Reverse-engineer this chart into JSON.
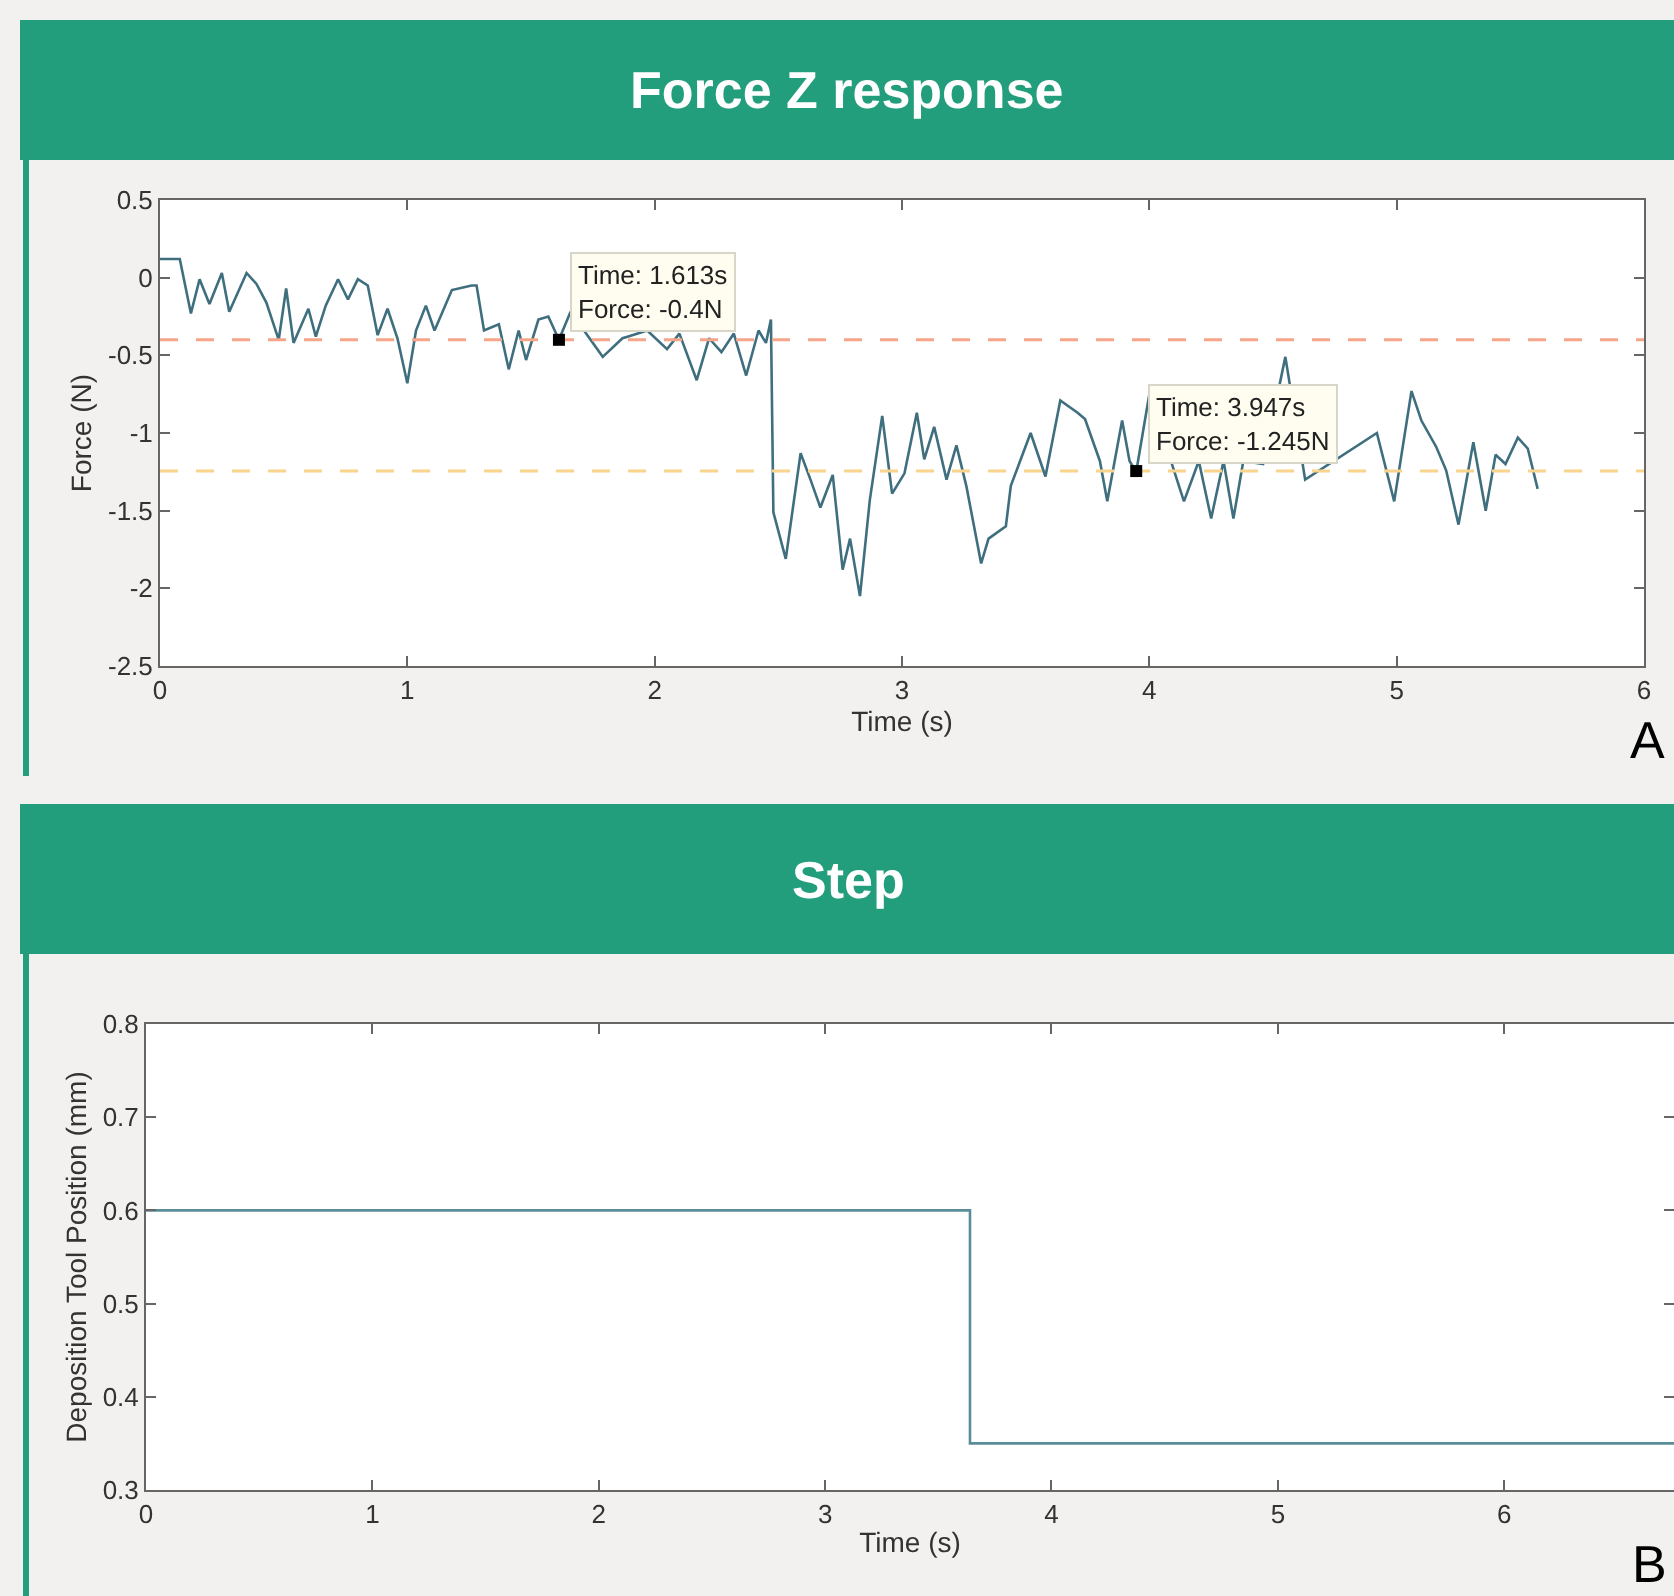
{
  "chart_data": [
    {
      "type": "line",
      "title": "Force Z response",
      "xlabel": "Time (s)",
      "ylabel": "Force (N)",
      "xlim": [
        0,
        6
      ],
      "ylim": [
        -2.5,
        0.5
      ],
      "xticks": [
        0,
        1,
        2,
        3,
        4,
        5,
        6
      ],
      "yticks": [
        -2.5,
        -2,
        -1.5,
        -1,
        -0.5,
        0,
        0.5
      ],
      "series": [
        {
          "color": "#3f6f7f",
          "x": [
            0,
            0.08,
            0.125,
            0.16,
            0.2,
            0.25,
            0.28,
            0.35,
            0.39,
            0.43,
            0.48,
            0.51,
            0.54,
            0.6,
            0.63,
            0.67,
            0.72,
            0.76,
            0.8,
            0.84,
            0.88,
            0.92,
            0.96,
            1.0,
            1.035,
            1.075,
            1.11,
            1.18,
            1.26,
            1.28,
            1.31,
            1.37,
            1.41,
            1.45,
            1.48,
            1.53,
            1.57,
            1.613,
            1.66,
            1.79,
            1.87,
            1.89,
            1.97,
            2.05,
            2.1,
            2.17,
            2.22,
            2.27,
            2.32,
            2.37,
            2.42,
            2.45,
            2.47,
            2.48,
            2.53,
            2.59,
            2.63,
            2.67,
            2.72,
            2.76,
            2.79,
            2.83,
            2.87,
            2.92,
            2.96,
            3.01,
            3.06,
            3.09,
            3.13,
            3.18,
            3.22,
            3.26,
            3.32,
            3.35,
            3.42,
            3.44,
            3.52,
            3.58,
            3.64,
            3.71,
            3.74,
            3.8,
            3.83,
            3.89,
            3.92,
            3.947,
            4.0,
            4.14,
            4.2,
            4.25,
            4.3,
            4.34,
            4.38,
            4.46,
            4.55,
            4.63,
            4.92,
            4.99,
            5.06,
            5.1,
            5.16,
            5.2,
            5.25,
            5.31,
            5.36,
            5.4,
            5.44,
            5.49,
            5.53,
            5.57
          ],
          "values": [
            0.12,
            0.12,
            -0.23,
            -0.01,
            -0.17,
            0.03,
            -0.22,
            0.03,
            -0.04,
            -0.16,
            -0.4,
            -0.07,
            -0.42,
            -0.2,
            -0.38,
            -0.18,
            -0.01,
            -0.14,
            -0.01,
            -0.05,
            -0.37,
            -0.2,
            -0.39,
            -0.68,
            -0.34,
            -0.18,
            -0.34,
            -0.08,
            -0.05,
            -0.05,
            -0.34,
            -0.3,
            -0.59,
            -0.34,
            -0.53,
            -0.27,
            -0.25,
            -0.4,
            -0.22,
            -0.51,
            -0.39,
            -0.38,
            -0.34,
            -0.46,
            -0.36,
            -0.66,
            -0.39,
            -0.48,
            -0.36,
            -0.63,
            -0.34,
            -0.42,
            -0.27,
            -1.51,
            -1.81,
            -1.13,
            -1.3,
            -1.48,
            -1.27,
            -1.88,
            -1.68,
            -2.05,
            -1.43,
            -0.89,
            -1.39,
            -1.26,
            -0.87,
            -1.17,
            -0.96,
            -1.3,
            -1.08,
            -1.34,
            -1.84,
            -1.68,
            -1.6,
            -1.34,
            -1.0,
            -1.28,
            -0.79,
            -0.87,
            -0.91,
            -1.18,
            -1.44,
            -0.92,
            -1.18,
            -1.25,
            -0.75,
            -1.44,
            -1.18,
            -1.55,
            -1.18,
            -1.55,
            -1.18,
            -1.2,
            -0.51,
            -1.3,
            -1.0,
            -1.44,
            -0.73,
            -0.92,
            -1.09,
            -1.24,
            -1.59,
            -1.06,
            -1.5,
            -1.14,
            -1.2,
            -1.03,
            -1.1,
            -1.36
          ]
        }
      ],
      "ref_lines": [
        {
          "axis": "y",
          "value": -0.4,
          "color": "#f4a58a",
          "line_style": "dashed"
        },
        {
          "axis": "y",
          "value": -1.245,
          "color": "#f8d48c",
          "line_style": "dashed"
        }
      ],
      "annotations": [
        {
          "text": "Time: 1.613s\nForce: -0.4N",
          "x": 1.613,
          "y": -0.4
        },
        {
          "text": "Time: 3.947s\nForce: -1.245N",
          "x": 3.947,
          "y": -1.245
        },
        "A"
      ]
    },
    {
      "type": "step",
      "title": "Step",
      "xlabel": "Time (s)",
      "ylabel": "Deposition Tool Position (mm)",
      "xlim": [
        0,
        6.75
      ],
      "ylim": [
        0.3,
        0.8
      ],
      "xticks": [
        0,
        1,
        2,
        3,
        4,
        5,
        6
      ],
      "yticks": [
        0.3,
        0.4,
        0.5,
        0.6,
        0.7,
        0.8
      ],
      "series": [
        {
          "color": "#5a8d99",
          "x": [
            0,
            3.64,
            6.75
          ],
          "values": [
            0.6,
            0.35,
            0.35
          ]
        }
      ],
      "annotations": [
        "B"
      ]
    }
  ]
}
